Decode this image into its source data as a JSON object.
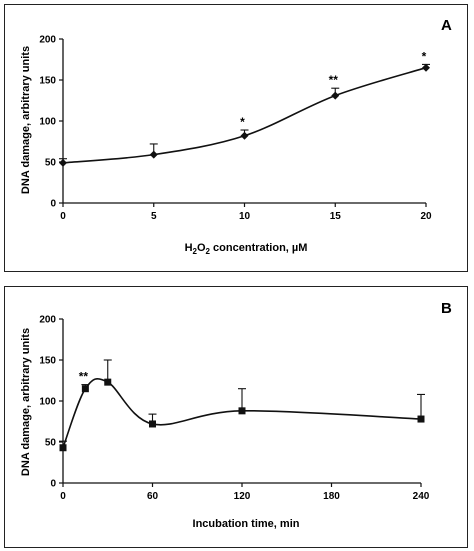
{
  "chart_data": [
    {
      "panel_label": "A",
      "type": "line",
      "xlabel_pre": "H",
      "xlabel_sub1": "2",
      "xlabel_mid": "O",
      "xlabel_sub2": "2",
      "xlabel_post": " concentration, µM",
      "ylabel": "DNA damage, arbitrary units",
      "xlim": [
        0,
        20
      ],
      "ylim": [
        0,
        200
      ],
      "x_ticks": [
        0,
        5,
        10,
        15,
        20
      ],
      "y_ticks": [
        0,
        50,
        100,
        150,
        200
      ],
      "marker": "diamond",
      "x": [
        0,
        5,
        10,
        15,
        20
      ],
      "y": [
        49,
        59,
        82,
        131,
        165
      ],
      "error_plus": [
        5,
        13,
        7,
        9,
        4
      ],
      "annotations": [
        "",
        "",
        "*",
        "**",
        "*"
      ]
    },
    {
      "panel_label": "B",
      "type": "line",
      "xlabel": "Incubation time, min",
      "ylabel": "DNA damage, arbitrary units",
      "xlim": [
        0,
        240
      ],
      "ylim": [
        0,
        200
      ],
      "x_ticks": [
        0,
        60,
        120,
        180,
        240
      ],
      "y_ticks": [
        0,
        50,
        100,
        150,
        200
      ],
      "marker": "square",
      "x": [
        0,
        15,
        30,
        60,
        120,
        240
      ],
      "y": [
        43,
        115,
        123,
        72,
        88,
        78
      ],
      "error_plus": [
        8,
        5,
        27,
        12,
        27,
        30
      ],
      "annotations": [
        "",
        "**",
        "",
        "",
        "",
        ""
      ]
    }
  ]
}
